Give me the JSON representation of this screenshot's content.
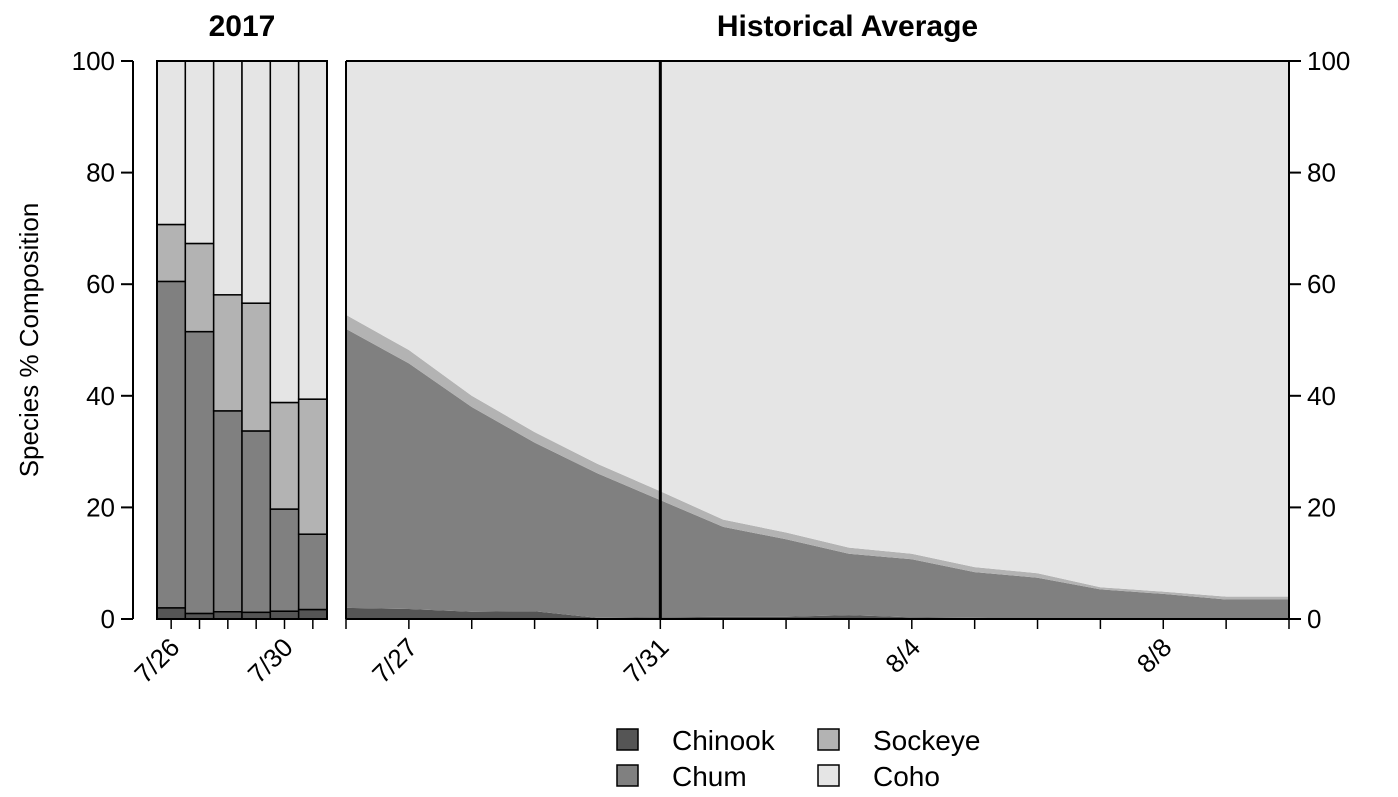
{
  "chart_data": {
    "type": "area",
    "ylabel": "Species % Composition",
    "ylim": [
      0,
      100
    ],
    "yticks": [
      0,
      20,
      40,
      60,
      80,
      100
    ],
    "species": [
      "Chinook",
      "Chum",
      "Sockeye",
      "Coho"
    ],
    "colors": {
      "Chinook": "#555555",
      "Chum": "#808080",
      "Sockeye": "#b3b3b3",
      "Coho": "#e5e5e5"
    },
    "legend": {
      "position": "bottom",
      "entries": [
        {
          "label": "Chinook",
          "color": "#555555"
        },
        {
          "label": "Sockeye",
          "color": "#b3b3b3"
        },
        {
          "label": "Chum",
          "color": "#808080"
        },
        {
          "label": "Coho",
          "color": "#e5e5e5"
        }
      ]
    },
    "panels": [
      {
        "title": "2017",
        "type": "bar",
        "stacked": true,
        "categories": [
          "7/26",
          "7/27",
          "7/28",
          "7/29",
          "7/30",
          "7/31"
        ],
        "tick_labels": [
          {
            "category": "7/26",
            "label": "7/26"
          },
          {
            "category": "7/30",
            "label": "7/30"
          }
        ],
        "series": [
          {
            "name": "Chinook",
            "values": [
              2.0,
              1.0,
              1.3,
              1.2,
              1.4,
              1.7
            ]
          },
          {
            "name": "Chum",
            "values": [
              58.5,
              50.5,
              36.0,
              32.5,
              18.3,
              13.5
            ]
          },
          {
            "name": "Sockeye",
            "values": [
              10.2,
              15.8,
              20.8,
              22.9,
              19.1,
              24.2
            ]
          },
          {
            "name": "Coho",
            "values": [
              29.3,
              32.7,
              41.9,
              43.4,
              61.2,
              60.6
            ]
          }
        ]
      },
      {
        "title": "Historical Average",
        "type": "area",
        "stacked": true,
        "x": [
          "7/26",
          "7/27",
          "7/28",
          "7/29",
          "7/30",
          "7/31",
          "8/1",
          "8/2",
          "8/3",
          "8/4",
          "8/5",
          "8/6",
          "8/7",
          "8/8",
          "8/9",
          "8/10"
        ],
        "tick_labels": [
          "7/27",
          "7/31",
          "8/4",
          "8/8"
        ],
        "marker_line": "7/31",
        "series": [
          {
            "name": "Chinook",
            "values": [
              2.0,
              1.8,
              1.3,
              1.4,
              0.2,
              0.3,
              0.4,
              0.4,
              0.7,
              0.3,
              0.2,
              0.1,
              0.1,
              0.1,
              0.1,
              0.1
            ]
          },
          {
            "name": "Chum",
            "values": [
              50.0,
              44.0,
              36.7,
              30.2,
              25.9,
              21.0,
              16.1,
              13.9,
              11.0,
              10.4,
              8.2,
              7.3,
              5.2,
              4.4,
              3.4,
              3.4
            ]
          },
          {
            "name": "Sockeye",
            "values": [
              2.5,
              2.4,
              2.0,
              1.9,
              1.7,
              1.6,
              1.3,
              1.2,
              1.1,
              1.0,
              0.9,
              0.8,
              0.4,
              0.4,
              0.5,
              0.5
            ]
          },
          {
            "name": "Coho",
            "values": [
              45.5,
              51.8,
              60.0,
              66.5,
              72.2,
              77.1,
              82.2,
              84.5,
              87.2,
              88.3,
              90.7,
              91.8,
              94.3,
              95.1,
              96.0,
              96.0
            ]
          }
        ]
      }
    ]
  }
}
